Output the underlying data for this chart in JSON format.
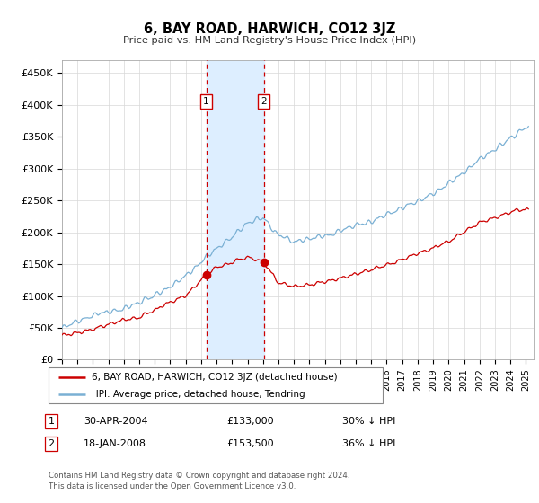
{
  "title": "6, BAY ROAD, HARWICH, CO12 3JZ",
  "subtitle": "Price paid vs. HM Land Registry's House Price Index (HPI)",
  "ylabel_ticks": [
    "£0",
    "£50K",
    "£100K",
    "£150K",
    "£200K",
    "£250K",
    "£300K",
    "£350K",
    "£400K",
    "£450K"
  ],
  "ytick_values": [
    0,
    50000,
    100000,
    150000,
    200000,
    250000,
    300000,
    350000,
    400000,
    450000
  ],
  "ylim": [
    0,
    470000
  ],
  "xlim_start": 1995.0,
  "xlim_end": 2025.5,
  "sale1_date": 2004.33,
  "sale1_price": 133000,
  "sale1_label": "1",
  "sale1_text": "30-APR-2004",
  "sale1_price_str": "£133,000",
  "sale1_pct": "30% ↓ HPI",
  "sale2_date": 2008.05,
  "sale2_price": 153500,
  "sale2_label": "2",
  "sale2_text": "18-JAN-2008",
  "sale2_price_str": "£153,500",
  "sale2_pct": "36% ↓ HPI",
  "red_line_color": "#cc0000",
  "blue_line_color": "#7ab0d4",
  "shade_color": "#ddeeff",
  "legend_line1": "6, BAY ROAD, HARWICH, CO12 3JZ (detached house)",
  "legend_line2": "HPI: Average price, detached house, Tendring",
  "footnote": "Contains HM Land Registry data © Crown copyright and database right 2024.\nThis data is licensed under the Open Government Licence v3.0.",
  "marker_box_color": "#cc0000"
}
